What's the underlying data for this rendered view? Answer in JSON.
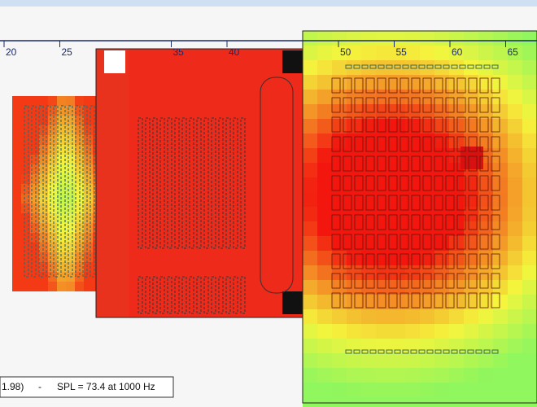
{
  "ruler": {
    "ticks": [
      20,
      25,
      35,
      40,
      50,
      55,
      60,
      65
    ]
  },
  "status": {
    "coords": "1.98)",
    "separator": "-",
    "spl": "SPL = 73.4 at 1000 Hz"
  }
}
